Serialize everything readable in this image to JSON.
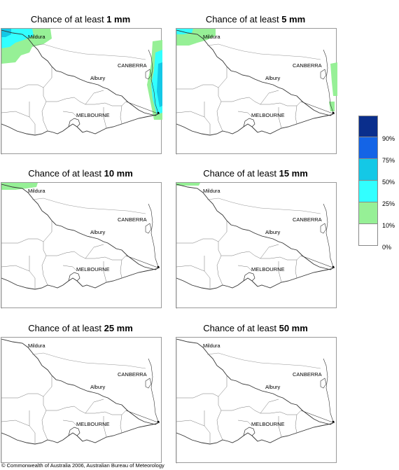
{
  "panels": [
    {
      "prefix": "Chance of at least ",
      "amount": "1 mm"
    },
    {
      "prefix": "Chance of at least ",
      "amount": "5 mm"
    },
    {
      "prefix": "Chance of at least ",
      "amount": "10 mm"
    },
    {
      "prefix": "Chance of at least ",
      "amount": "15 mm"
    },
    {
      "prefix": "Chance of at least ",
      "amount": "25 mm"
    },
    {
      "prefix": "Chance of at least ",
      "amount": "50 mm"
    }
  ],
  "places": {
    "mildura": "Mildura",
    "canberra": "CANBERRA",
    "albury": "Albury",
    "melbourne": "MELBOURNE"
  },
  "legend": {
    "labels": [
      "90%",
      "75%",
      "50%",
      "25%",
      "10%",
      "0%"
    ],
    "colors": [
      "#0a2e8c",
      "#1464e6",
      "#14c8e6",
      "#32ffff",
      "#96f096",
      "#ffffff"
    ]
  },
  "copyright": "© Commonwealth of Australia 2006, Australian Bureau of Meteorology"
}
